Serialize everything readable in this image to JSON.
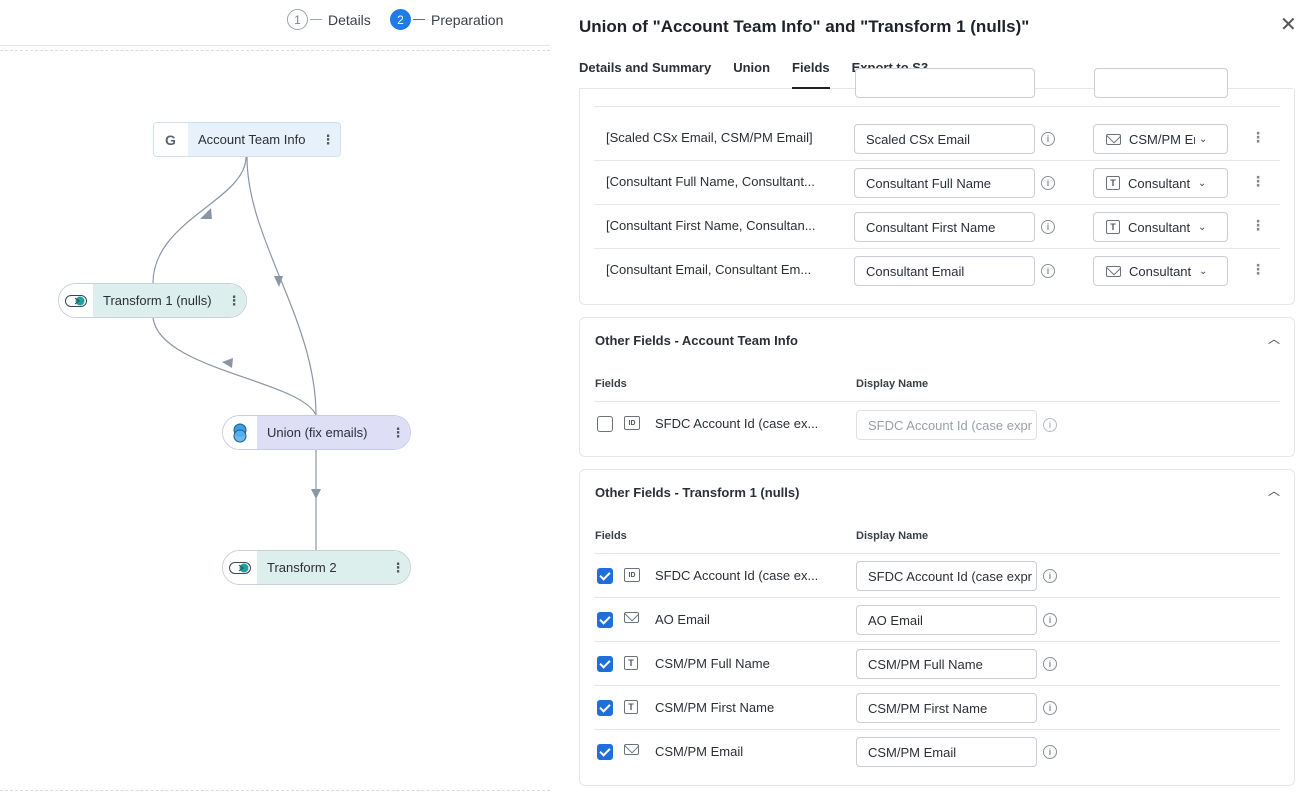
{
  "stepper": {
    "steps": [
      {
        "num": "1",
        "label": "Details"
      },
      {
        "num": "2",
        "label": "Preparation"
      }
    ]
  },
  "graph": {
    "nodes": {
      "account": {
        "label": "Account Team Info",
        "icon": "google-icon"
      },
      "transform1": {
        "label": "Transform 1 (nulls)",
        "icon": "transform-icon"
      },
      "union": {
        "label": "Union (fix emails)",
        "icon": "union-icon"
      },
      "transform2": {
        "label": "Transform 2",
        "icon": "transform-icon"
      }
    }
  },
  "panel": {
    "title": "Union of \"Account Team Info\" and \"Transform 1 (nulls)\"",
    "tabs": [
      "Details and Summary",
      "Union",
      "Fields",
      "Export to S3"
    ],
    "active_tab": "Fields",
    "mapped_rows": [
      {
        "fields": "[Scaled CSx Email, CSM/PM Email]",
        "display": "Scaled CSx Email",
        "type": "CSM/PM Er",
        "type_icon": "mail-icon"
      },
      {
        "fields": "[Consultant Full Name, Consultant...",
        "display": "Consultant Full Name",
        "type": "Consultant",
        "type_icon": "text-icon"
      },
      {
        "fields": "[Consultant First Name, Consultan...",
        "display": "Consultant First Name",
        "type": "Consultant",
        "type_icon": "text-icon"
      },
      {
        "fields": "[Consultant Email, Consultant Em...",
        "display": "Consultant Email",
        "type": "Consultant",
        "type_icon": "mail-icon"
      }
    ],
    "other_account": {
      "title": "Other Fields - Account Team Info",
      "col_fields": "Fields",
      "col_display": "Display Name",
      "rows": [
        {
          "checked": false,
          "type_icon": "id-icon",
          "name": "SFDC Account Id (case ex...",
          "display": "SFDC Account Id (case expr"
        }
      ]
    },
    "other_transform": {
      "title": "Other Fields - Transform 1 (nulls)",
      "col_fields": "Fields",
      "col_display": "Display Name",
      "rows": [
        {
          "checked": true,
          "type_icon": "id-icon",
          "name": "SFDC Account Id (case ex...",
          "display": "SFDC Account Id (case expr"
        },
        {
          "checked": true,
          "type_icon": "mail-icon",
          "name": "AO Email",
          "display": "AO Email"
        },
        {
          "checked": true,
          "type_icon": "text-icon",
          "name": "CSM/PM Full Name",
          "display": "CSM/PM Full Name"
        },
        {
          "checked": true,
          "type_icon": "text-icon",
          "name": "CSM/PM First Name",
          "display": "CSM/PM First Name"
        },
        {
          "checked": true,
          "type_icon": "mail-icon",
          "name": "CSM/PM Email",
          "display": "CSM/PM Email"
        }
      ]
    }
  },
  "colors": {
    "accent": "#1e7be8",
    "checkbox": "#1e6fd9",
    "node_source": "#e7f1fb",
    "node_transform": "#dcefed",
    "node_union": "#dedff7"
  }
}
